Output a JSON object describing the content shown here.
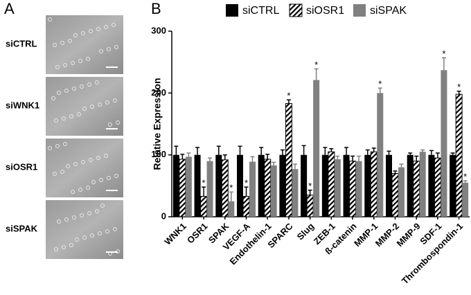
{
  "panel_a": {
    "label": "A",
    "rows": [
      "siCTRL",
      "siWNK1",
      "siOSR1",
      "siSPAK"
    ]
  },
  "chart_data": {
    "type": "bar",
    "panel_label": "B",
    "ylabel": "Relative Expression",
    "categories": [
      "WNK1",
      "OSR1",
      "SPAK",
      "VEGF-A",
      "Endothelin-1",
      "SPARC",
      "Slug",
      "ZEB-1",
      "ß-catenin",
      "MMP-1",
      "MMP-2",
      "MMP-9",
      "SDF-1",
      "Thrombospondin-1"
    ],
    "series": [
      {
        "name": "siCTRL",
        "color": "#000000",
        "values": [
          100,
          100,
          100,
          100,
          100,
          100,
          100,
          100,
          100,
          100,
          100,
          100,
          100,
          100
        ],
        "errors": [
          14,
          12,
          14,
          14,
          12,
          8,
          15,
          12,
          12,
          8,
          6,
          3,
          7,
          3
        ]
      },
      {
        "name": "siOSR1",
        "color": "#ffffff",
        "hatch": true,
        "values": [
          93,
          33,
          92,
          33,
          93,
          183,
          35,
          105,
          90,
          105,
          70,
          90,
          95,
          198
        ],
        "errors": [
          8,
          15,
          8,
          15,
          8,
          6,
          8,
          5,
          8,
          6,
          4,
          8,
          8,
          5
        ]
      },
      {
        "name": "siSPAK",
        "color": "#808080",
        "values": [
          97,
          90,
          25,
          89,
          83,
          77,
          221,
          93,
          90,
          200,
          80,
          105,
          237,
          55
        ],
        "errors": [
          6,
          5,
          15,
          8,
          5,
          8,
          18,
          5,
          8,
          8,
          5,
          3,
          20,
          3
        ]
      }
    ],
    "annotations": [
      {
        "text": "*",
        "category": "OSR1",
        "series": "siOSR1"
      },
      {
        "text": "*",
        "category": "SPAK",
        "series": "siSPAK"
      },
      {
        "text": "*",
        "category": "VEGF-A",
        "series": "siOSR1"
      },
      {
        "text": "*",
        "category": "SPARC",
        "series": "siOSR1"
      },
      {
        "text": "*",
        "category": "Slug",
        "series": "siOSR1"
      },
      {
        "text": "*",
        "category": "Slug",
        "series": "siSPAK"
      },
      {
        "text": "*",
        "category": "MMP-1",
        "series": "siSPAK"
      },
      {
        "text": "*",
        "category": "SDF-1",
        "series": "siSPAK"
      },
      {
        "text": "*",
        "category": "Thrombospondin-1",
        "series": "siOSR1"
      },
      {
        "text": "*",
        "category": "Thrombospondin-1",
        "series": "siSPAK"
      }
    ],
    "ylim": [
      0,
      300
    ],
    "yticks": [
      0,
      100,
      200,
      300
    ]
  }
}
